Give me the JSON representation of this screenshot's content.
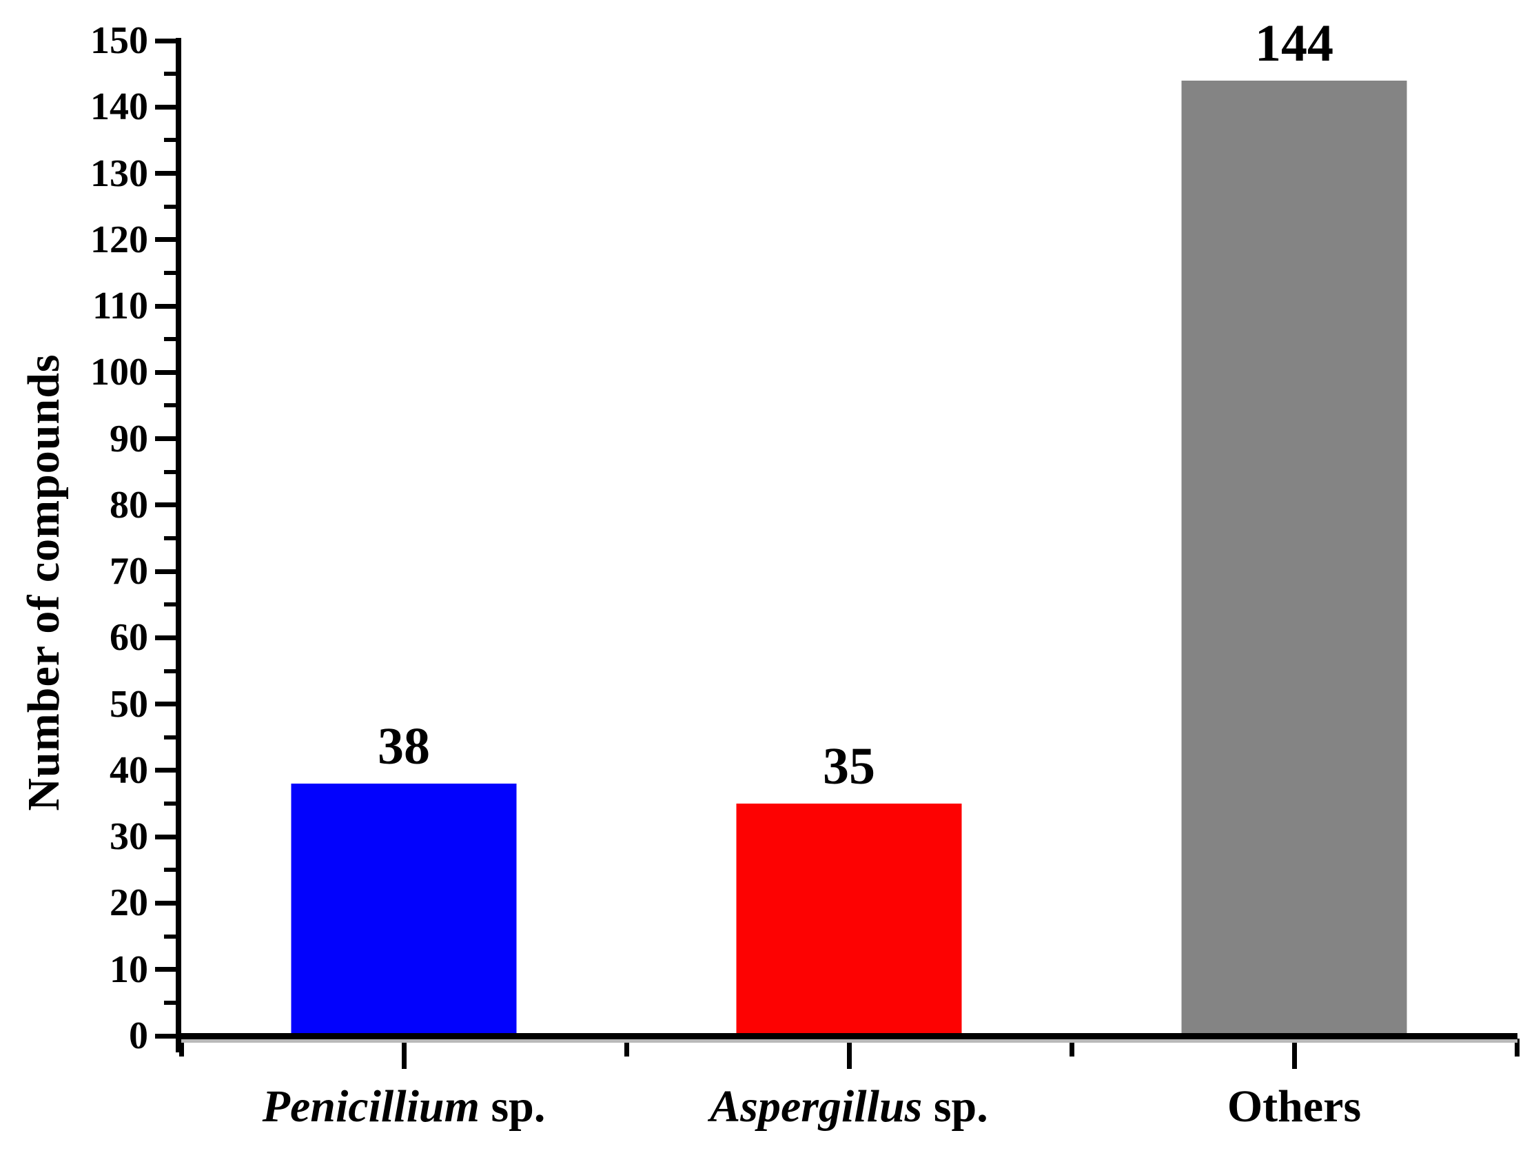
{
  "chart_data": {
    "type": "bar",
    "title": "",
    "xlabel": "",
    "ylabel": "Number of compounds",
    "ylim": [
      0,
      150
    ],
    "yticks": [
      0,
      10,
      20,
      30,
      40,
      50,
      60,
      70,
      80,
      90,
      100,
      110,
      120,
      130,
      140,
      150
    ],
    "ytick_minor_interval": 5,
    "grid": false,
    "legend_position": "none",
    "categories": [
      {
        "italic": "Penicillium",
        "regular": " sp.",
        "full": "Penicillium sp."
      },
      {
        "italic": "Aspergillus",
        "regular": " sp.",
        "full": "Aspergillus sp."
      },
      {
        "italic": "",
        "regular": "Others",
        "full": "Others"
      }
    ],
    "values": [
      38,
      35,
      144
    ],
    "value_labels": [
      "38",
      "35",
      "144"
    ],
    "bar_colors": [
      "#0202fd",
      "#fd0202",
      "#848484"
    ]
  },
  "colors": {
    "axis": "#000000",
    "background": "#ffffff",
    "text": "#000000"
  }
}
